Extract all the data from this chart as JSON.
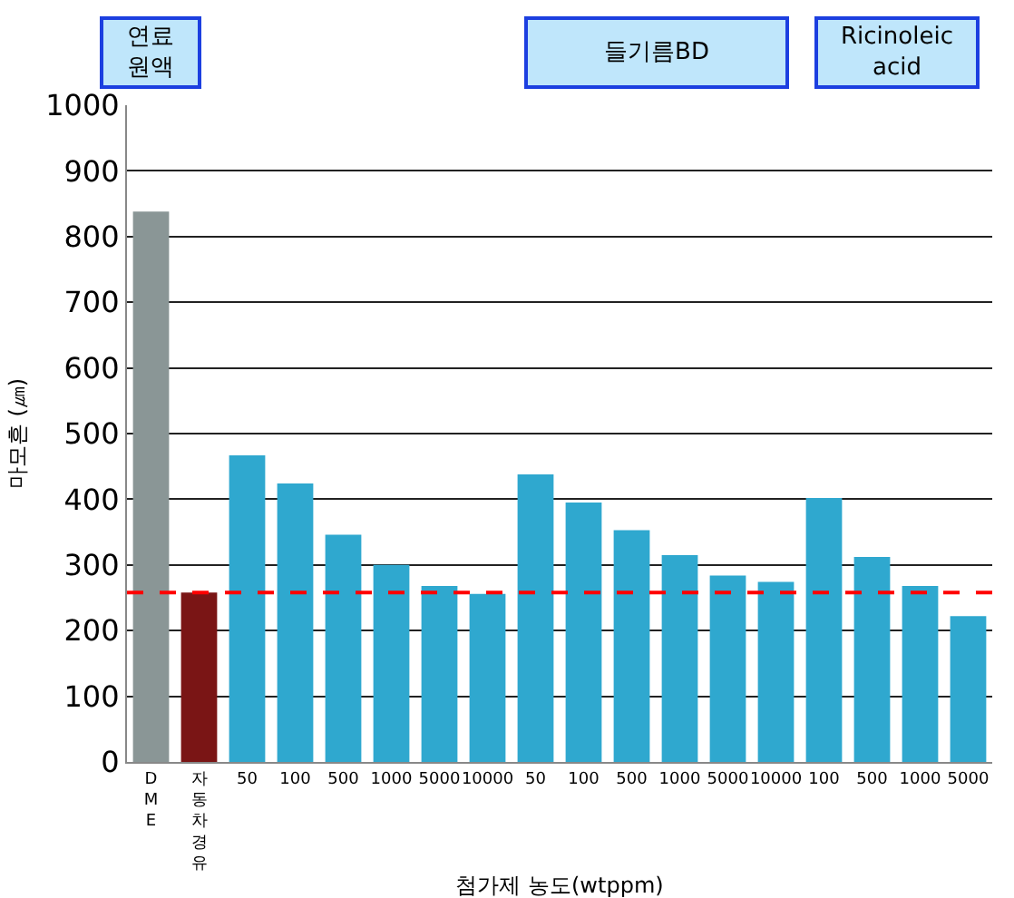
{
  "chart_data": {
    "type": "bar",
    "xlabel": "첨가제 농도(wtppm)",
    "ylabel": "마모흔 (㎛)",
    "categories": [
      "DME",
      "자동차경유",
      "50",
      "100",
      "500",
      "1000",
      "5000",
      "10000",
      "50",
      "100",
      "500",
      "1000",
      "5000",
      "10000",
      "100",
      "500",
      "1000",
      "5000"
    ],
    "values": [
      838,
      258,
      467,
      424,
      346,
      300,
      268,
      256,
      438,
      395,
      353,
      315,
      284,
      274,
      402,
      312,
      268,
      222
    ],
    "colors": [
      "#8a9696",
      "#7a1515",
      "#2fa8cf",
      "#2fa8cf",
      "#2fa8cf",
      "#2fa8cf",
      "#2fa8cf",
      "#2fa8cf",
      "#2fa8cf",
      "#2fa8cf",
      "#2fa8cf",
      "#2fa8cf",
      "#2fa8cf",
      "#2fa8cf",
      "#2fa8cf",
      "#2fa8cf",
      "#2fa8cf",
      "#2fa8cf"
    ],
    "ylim": [
      0,
      1000
    ],
    "yticks": [
      0,
      100,
      200,
      300,
      400,
      500,
      600,
      700,
      800,
      900,
      1000
    ],
    "grid": "y",
    "ref_lines": [
      {
        "axis": "y",
        "value": 258,
        "color": "#ff0000",
        "line_style": "dashed"
      }
    ],
    "annotations": [
      "연료 원액",
      "들기름BD",
      "Ricinoleic acid"
    ]
  }
}
